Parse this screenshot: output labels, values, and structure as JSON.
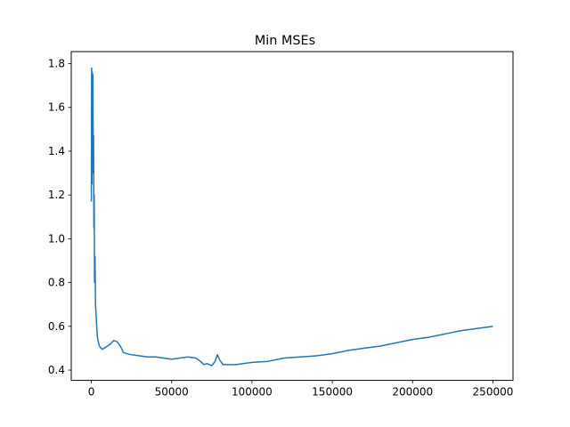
{
  "chart_data": {
    "type": "line",
    "title": "Min MSEs",
    "xlabel": "",
    "ylabel": "",
    "xlim": [
      -12500,
      262500
    ],
    "ylim": [
      0.353,
      1.855
    ],
    "grid": false,
    "legend": "none",
    "x_ticks": [
      0,
      50000,
      100000,
      150000,
      200000,
      250000
    ],
    "x_tick_labels": [
      "0",
      "50000",
      "100000",
      "150000",
      "200000",
      "250000"
    ],
    "y_ticks": [
      0.4,
      0.6,
      0.8,
      1.0,
      1.2,
      1.4,
      1.6,
      1.8
    ],
    "y_tick_labels": [
      "0.4",
      "0.6",
      "0.8",
      "1.0",
      "1.2",
      "1.4",
      "1.6",
      "1.8"
    ],
    "series": [
      {
        "color": "#1f77b4",
        "x": [
          0,
          200,
          400,
          600,
          800,
          1000,
          1200,
          1400,
          1600,
          1800,
          2000,
          2300,
          2600,
          3000,
          3500,
          4000,
          5000,
          6000,
          7000,
          8000,
          9000,
          10000,
          12000,
          14000,
          16000,
          18000,
          20000,
          22000,
          25000,
          30000,
          35000,
          40000,
          45000,
          50000,
          55000,
          60000,
          65000,
          68000,
          70000,
          72000,
          75000,
          77000,
          78500,
          80000,
          82000,
          85000,
          90000,
          95000,
          100000,
          110000,
          120000,
          130000,
          140000,
          150000,
          160000,
          170000,
          180000,
          190000,
          200000,
          210000,
          220000,
          230000,
          240000,
          250000
        ],
        "y": [
          1.17,
          1.78,
          1.25,
          1.76,
          1.4,
          1.75,
          1.3,
          1.47,
          1.05,
          1.2,
          0.8,
          0.92,
          0.7,
          0.65,
          0.58,
          0.54,
          0.51,
          0.5,
          0.495,
          0.5,
          0.505,
          0.51,
          0.52,
          0.535,
          0.53,
          0.51,
          0.48,
          0.475,
          0.47,
          0.465,
          0.46,
          0.46,
          0.455,
          0.45,
          0.455,
          0.46,
          0.455,
          0.44,
          0.425,
          0.43,
          0.42,
          0.44,
          0.47,
          0.445,
          0.425,
          0.425,
          0.425,
          0.43,
          0.435,
          0.44,
          0.455,
          0.46,
          0.465,
          0.475,
          0.49,
          0.5,
          0.51,
          0.525,
          0.54,
          0.55,
          0.565,
          0.58,
          0.59,
          0.6
        ]
      }
    ]
  }
}
